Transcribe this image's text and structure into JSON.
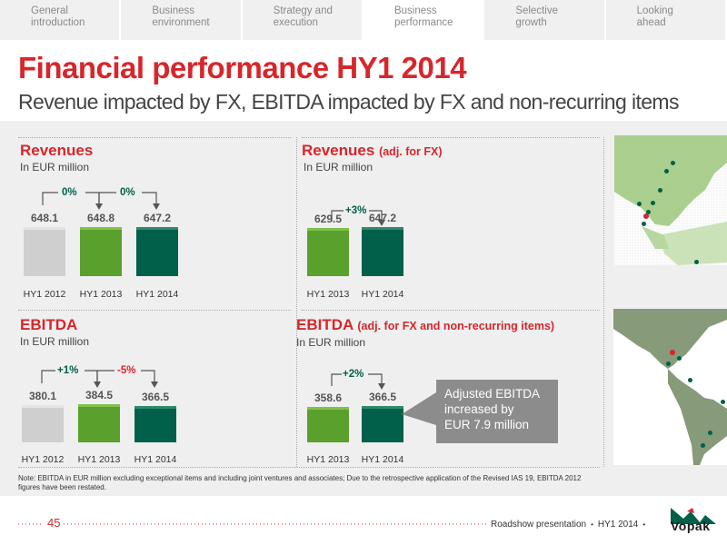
{
  "nav": {
    "tabs": [
      {
        "label1": "General",
        "label2": "introduction"
      },
      {
        "label1": "Business",
        "label2": "environment"
      },
      {
        "label1": "Strategy and",
        "label2": "execution"
      },
      {
        "label1": "Business",
        "label2": "performance"
      },
      {
        "label1": "Selective",
        "label2": "growth"
      },
      {
        "label1": "Looking",
        "label2": "ahead"
      }
    ],
    "active_index": 3
  },
  "title": "Financial performance HY1 2014",
  "subtitle": "Revenue impacted by FX, EBITDA  impacted by FX and non-recurring items",
  "colors": {
    "accent_red": "#d7262b",
    "grey_bar": "#cfcfcf",
    "green_bar": "#5aa02c",
    "dark_green_bar": "#00604a",
    "callout_grey": "#8c8c8c"
  },
  "chart_data": [
    {
      "type": "bar",
      "title": "Revenues",
      "title_suffix": "",
      "unit": "In EUR million",
      "categories": [
        "HY1 2012",
        "HY1 2013",
        "HY1 2014"
      ],
      "values": [
        648.1,
        648.8,
        647.2
      ],
      "value_labels": [
        "648.1",
        "648.8",
        "647.2"
      ],
      "growth": [
        "0%",
        "0%"
      ]
    },
    {
      "type": "bar",
      "title": "Revenues",
      "title_suffix": "(adj. for FX)",
      "unit": "In EUR million",
      "categories": [
        "HY1 2013",
        "HY1 2014"
      ],
      "values": [
        629.5,
        647.2
      ],
      "value_labels": [
        "629.5",
        "647.2"
      ],
      "growth": [
        "+3%"
      ]
    },
    {
      "type": "bar",
      "title": "EBITDA",
      "title_suffix": "",
      "unit": "In EUR million",
      "categories": [
        "HY1 2012",
        "HY1 2013",
        "HY1 2014"
      ],
      "values": [
        380.1,
        384.5,
        366.5
      ],
      "value_labels": [
        "380.1",
        "384.5",
        "366.5"
      ],
      "growth": [
        "+1%",
        "-5%"
      ]
    },
    {
      "type": "bar",
      "title": "EBITDA",
      "title_suffix": "(adj. for FX and non-recurring items)",
      "unit": "In EUR million",
      "categories": [
        "HY1 2013",
        "HY1 2014"
      ],
      "values": [
        358.6,
        366.5
      ],
      "value_labels": [
        "358.6",
        "366.5"
      ],
      "growth": [
        "+2%"
      ]
    }
  ],
  "callout": {
    "line1": "Adjusted EBITDA",
    "line2": "increased by",
    "line3": "EUR 7.9 million"
  },
  "note": "Note: EBITDA in EUR million excluding exceptional items and including joint ventures and associates; Due to the retrospective application of the Revised IAS 19, EBITDA 2012 figures have been restated.",
  "footer": {
    "page": "45",
    "presentation": "Roadshow presentation",
    "period": "HY1 2014",
    "brand": "Vopak"
  }
}
